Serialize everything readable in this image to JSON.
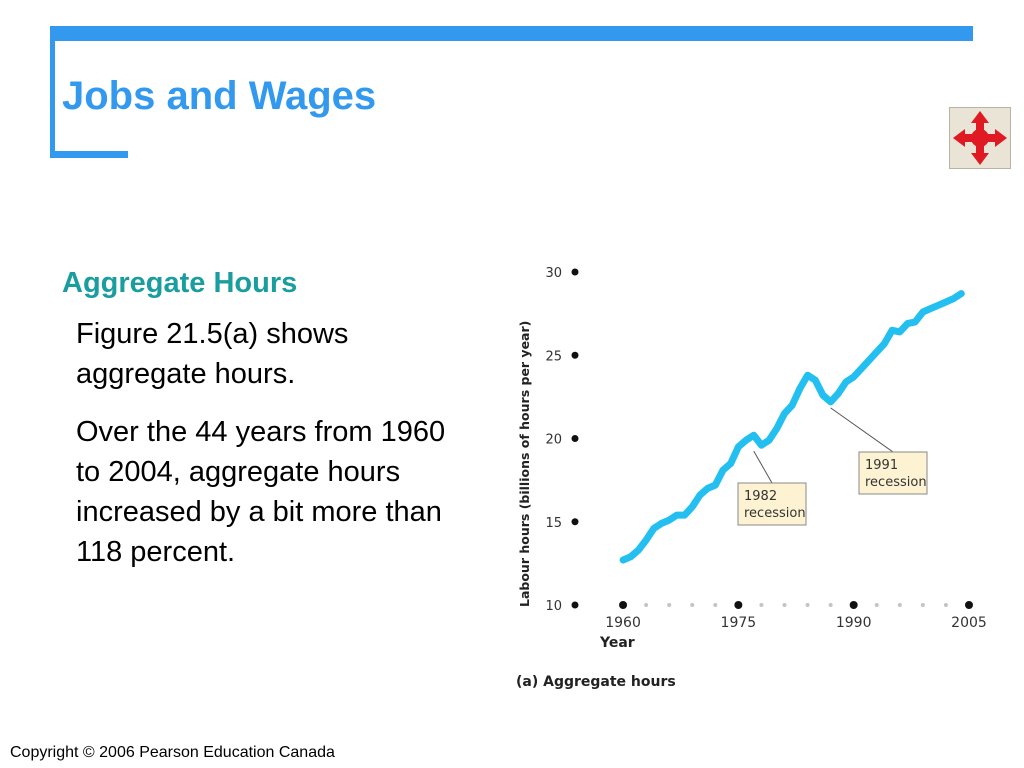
{
  "slide": {
    "title": "Jobs and Wages",
    "subtitle": "Aggregate Hours",
    "paragraphs": [
      "Figure 21.5(a) shows aggregate hours.",
      "Over the 44 years from 1960 to 2004, aggregate hours increased by a bit more than 118 percent."
    ],
    "footer": "Copyright © 2006 Pearson Education Canada",
    "nav_icon": "four-way-arrows-icon"
  },
  "colors": {
    "accent": "#3399ee",
    "subtitle": "#1a9d9f",
    "series": "#22bff0",
    "nav_arrows": "#e01a22",
    "callout_bg": "#fdf3d2"
  },
  "chart_data": {
    "type": "line",
    "caption": "(a) Aggregate hours",
    "xlabel": "Year",
    "ylabel": "Labour hours (billions of hours per year)",
    "xlim": [
      1957,
      2005
    ],
    "ylim": [
      10,
      30
    ],
    "x_ticks": [
      1960,
      1975,
      1990,
      2005
    ],
    "x_minor_ticks": [
      1963,
      1966,
      1969,
      1972,
      1978,
      1981,
      1984,
      1987,
      1993,
      1996,
      1999,
      2002
    ],
    "y_ticks": [
      10,
      15,
      20,
      25,
      30
    ],
    "grid": false,
    "legend": "none",
    "series": [
      {
        "x": [
          1960,
          1961,
          1962,
          1963,
          1964,
          1965,
          1966,
          1967,
          1968,
          1969,
          1970,
          1971,
          1972,
          1973,
          1974,
          1975,
          1976,
          1977,
          1978,
          1979,
          1980,
          1981,
          1982,
          1983,
          1984,
          1985,
          1986,
          1987,
          1988,
          1989,
          1990,
          1991,
          1992,
          1993,
          1994,
          1995,
          1996,
          1997,
          1998,
          1999,
          2000,
          2001,
          2002,
          2003,
          2004
        ],
        "values": [
          12.7,
          12.9,
          13.3,
          13.9,
          14.6,
          14.9,
          15.1,
          15.4,
          15.4,
          15.9,
          16.6,
          17.0,
          17.2,
          18.1,
          18.5,
          19.5,
          19.9,
          20.2,
          19.6,
          19.9,
          20.6,
          21.5,
          22.0,
          23.0,
          23.8,
          23.5,
          22.6,
          22.2,
          22.7,
          23.4,
          23.7,
          24.2,
          24.7,
          25.2,
          25.7,
          26.5,
          26.4,
          26.9,
          27.0,
          27.6,
          27.8,
          28.0,
          28.2,
          28.4,
          28.7
        ]
      }
    ],
    "annotations": [
      {
        "text": [
          "1982",
          "recession"
        ],
        "x": 1977,
        "y": 19.6
      },
      {
        "text": [
          "1991",
          "recession"
        ],
        "x": 1987,
        "y": 22.2
      }
    ]
  }
}
